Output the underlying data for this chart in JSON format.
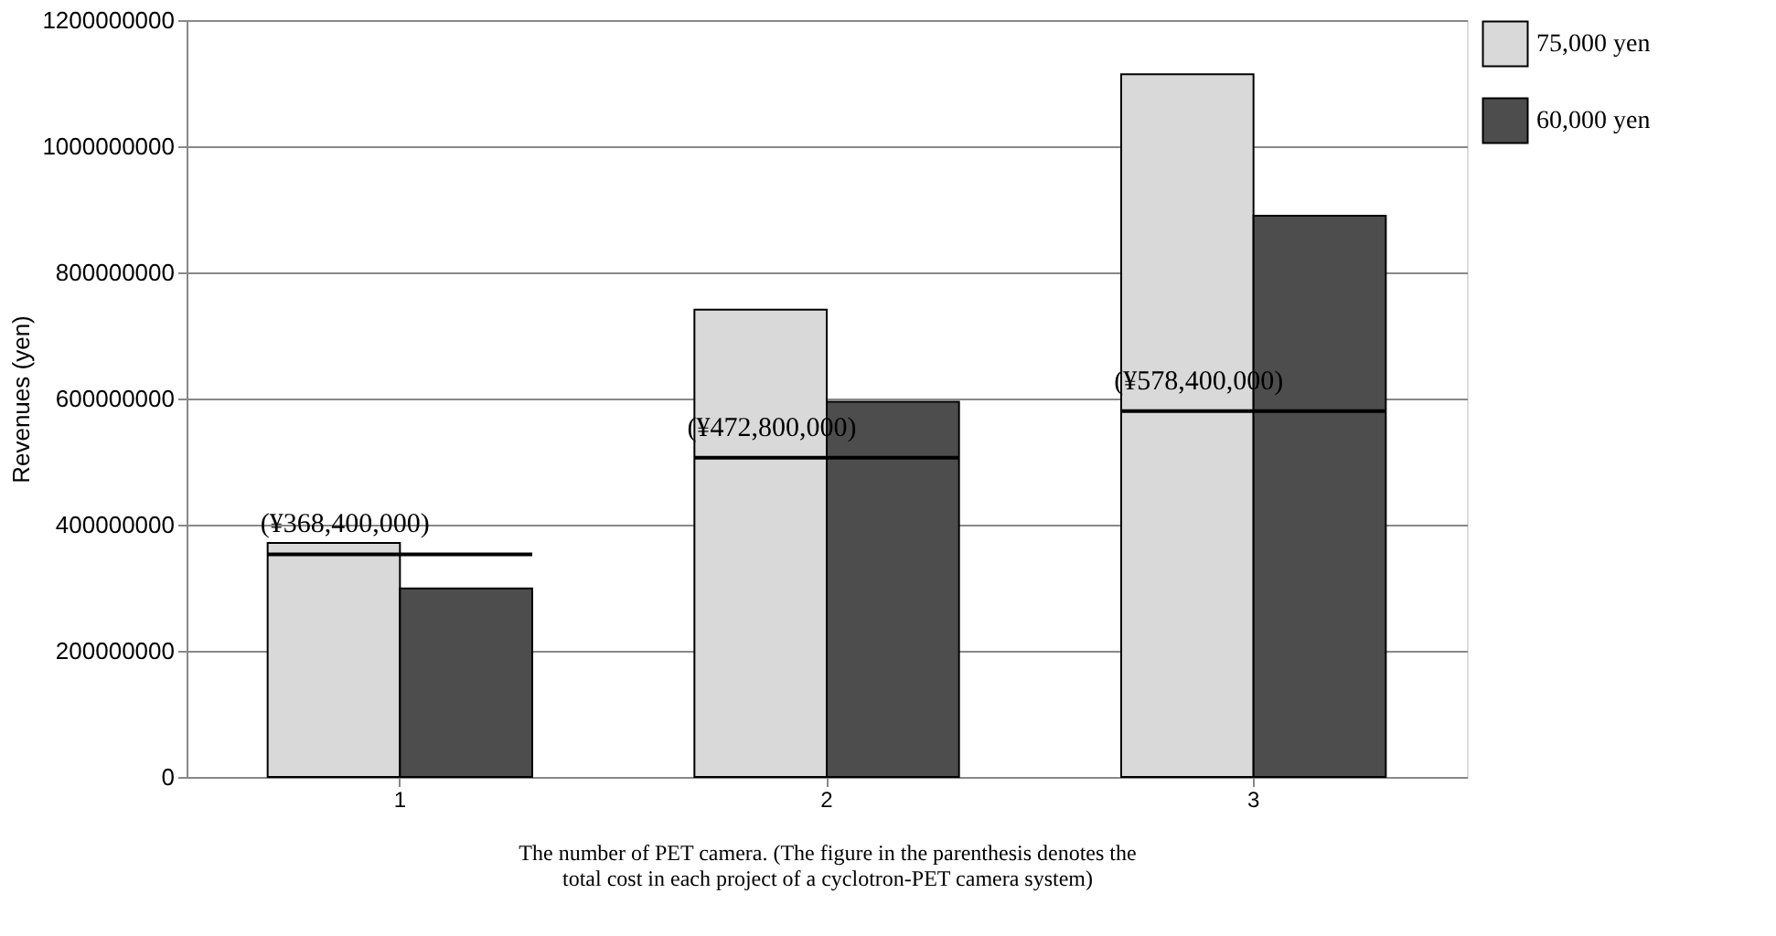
{
  "chart_data": {
    "type": "bar",
    "xlabel": "The number of PET camera. (The figure in the parenthesis denotes the total cost in each project of a cyclotron-PET camera system)",
    "ylabel": "Revenues (yen)",
    "categories": [
      "1",
      "2",
      "3"
    ],
    "series": [
      {
        "name": "75,000 yen",
        "color": "#d9d9d9",
        "values": [
          371000000,
          741000000,
          1114000000
        ]
      },
      {
        "name": "60,000 yen",
        "color": "#4d4d4d",
        "values": [
          299000000,
          595000000,
          890000000
        ]
      }
    ],
    "ylim": [
      0,
      1200000000
    ],
    "yticks": [
      0,
      200000000,
      400000000,
      600000000,
      800000000,
      1000000000,
      1200000000
    ],
    "grid": "y",
    "legend": "top right",
    "annotations": [
      {
        "text": "(¥368,400,000)",
        "x": "1",
        "y": 353000000
      },
      {
        "text": "(¥472,800,000)",
        "x": "2",
        "y": 506000000
      },
      {
        "text": "(¥578,400,000)",
        "x": "3",
        "y": 580000000
      }
    ]
  }
}
